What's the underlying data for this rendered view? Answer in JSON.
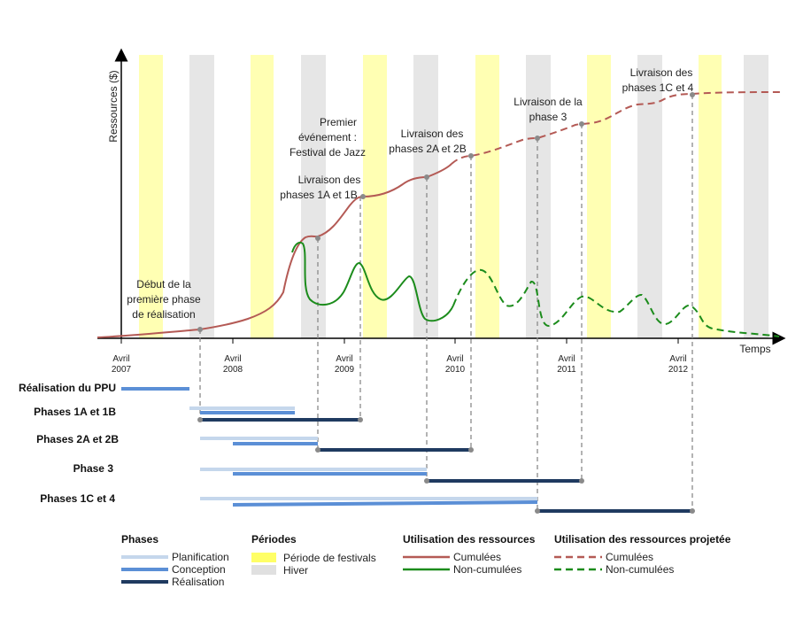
{
  "axes": {
    "y_label": "Ressources ($)",
    "x_label": "Temps"
  },
  "ticks": [
    {
      "l1": "Avril",
      "l2": "2007"
    },
    {
      "l1": "Avril",
      "l2": "2008"
    },
    {
      "l1": "Avril",
      "l2": "2009"
    },
    {
      "l1": "Avril",
      "l2": "2010"
    },
    {
      "l1": "Avril",
      "l2": "2011"
    },
    {
      "l1": "Avril",
      "l2": "2012"
    }
  ],
  "annotations": [
    {
      "lines": [
        "Début de la",
        "première phase",
        "de réalisation"
      ]
    },
    {
      "lines": [
        "Premier",
        "événement :",
        "Festival de Jazz"
      ]
    },
    {
      "lines": [
        "Livraison des",
        "phases  1A et 1B"
      ]
    },
    {
      "lines": [
        "Livraison des",
        "phases 2A et 2B"
      ]
    },
    {
      "lines": [
        "Livraison de la",
        "phase 3"
      ]
    },
    {
      "lines": [
        "Livraison des",
        "phases 1C et 4"
      ]
    }
  ],
  "phases": [
    {
      "label": "Réalisation du PPU"
    },
    {
      "label": "Phases 1A et 1B"
    },
    {
      "label": "Phases 2A et 2B"
    },
    {
      "label": "Phase 3"
    },
    {
      "label": "Phases 1C et 4"
    }
  ],
  "legend": {
    "phases_title": "Phases",
    "phases_items": [
      "Planification",
      "Conception",
      "Réalisation"
    ],
    "periods_title": "Périodes",
    "periods_items": [
      "Période de festivals",
      "Hiver"
    ],
    "usage_title": "Utilisation des ressources",
    "usage_items": [
      "Cumulées",
      "Non-cumulées"
    ],
    "proj_title": "Utilisation des ressources projetée",
    "proj_items": [
      "Cumulées",
      "Non-cumulées"
    ]
  },
  "colors": {
    "festival": "#ffffb3",
    "winter": "#e6e6e6",
    "cumulative": "#b45a55",
    "non_cumulative": "#1c8c1c",
    "planning": "#c5d7ec",
    "design": "#5b8fd6",
    "realization": "#1f3a60"
  }
}
